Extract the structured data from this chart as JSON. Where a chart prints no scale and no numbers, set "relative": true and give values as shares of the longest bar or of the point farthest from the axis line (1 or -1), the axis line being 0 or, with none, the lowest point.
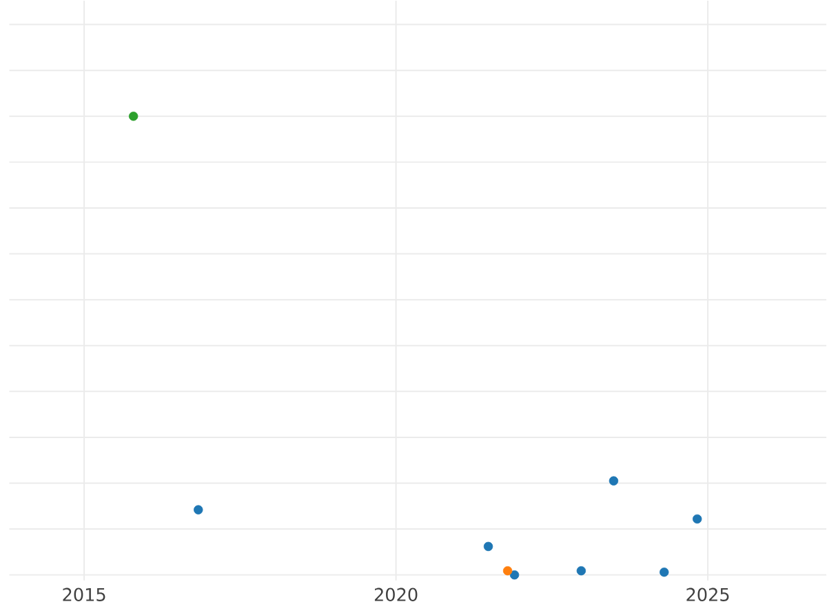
{
  "chart_data": {
    "type": "scatter",
    "relative": true,
    "grid": true,
    "xlim": [
      2013.8,
      2026.9
    ],
    "xticks": [
      2015,
      2020,
      2025
    ],
    "series": [
      {
        "color": "#1f77b4",
        "x": [
          2016.83,
          2021.48,
          2021.9,
          2022.97,
          2023.49,
          2024.3,
          2024.83
        ],
        "values": [
          0.142,
          0.062,
          0,
          0.009,
          0.205,
          0.006,
          0.122
        ]
      },
      {
        "color": "#ff7f0e",
        "x": [
          2021.79
        ],
        "values": [
          0.009
        ]
      },
      {
        "color": "#2ca02c",
        "x": [
          2015.79
        ],
        "values": [
          1
        ]
      }
    ]
  }
}
